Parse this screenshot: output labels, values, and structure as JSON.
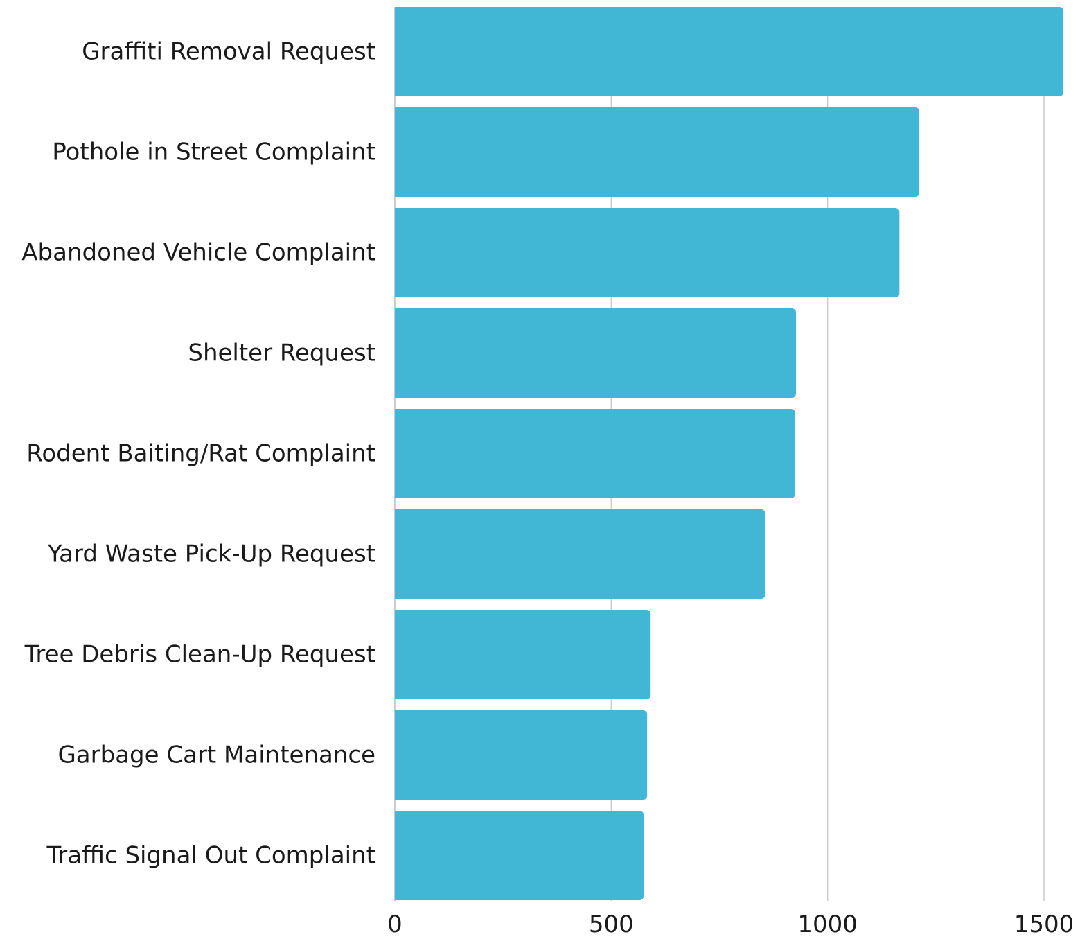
{
  "chart_data": {
    "type": "bar",
    "orientation": "horizontal",
    "categories": [
      "Graffiti Removal Request",
      "Pothole in Street Complaint",
      "Abandoned Vehicle Complaint",
      "Shelter Request",
      "Rodent Baiting/Rat Complaint",
      "Yard Waste Pick-Up Request",
      "Tree Debris Clean-Up Request",
      "Garbage Cart Maintenance",
      "Traffic Signal Out Complaint"
    ],
    "values": [
      1545,
      1212,
      1166,
      927,
      925,
      856,
      591,
      583,
      575
    ],
    "title": "",
    "xlabel": "",
    "ylabel": "",
    "xlim": [
      0,
      1500
    ],
    "x_ticks": [
      0,
      500,
      1000,
      1500
    ],
    "grid": "vertical",
    "legend": "none",
    "bar_color": "#42b6d5",
    "grid_color": "#cccccc",
    "text_color": "#1a1a1a"
  }
}
